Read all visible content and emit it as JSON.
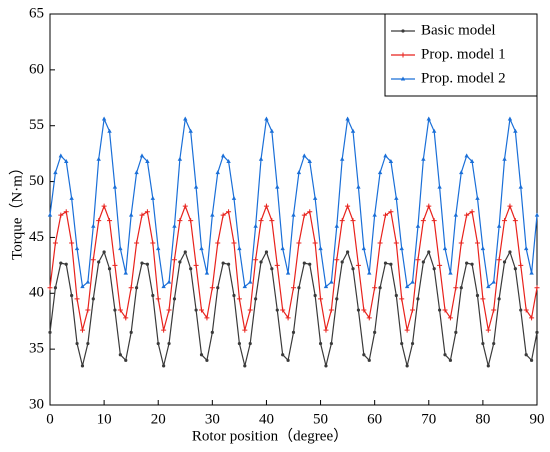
{
  "chart_data": {
    "type": "line",
    "x_label": "Rotor position（degree）",
    "y_label": "Torque（N·m）",
    "x": [
      0,
      1,
      2,
      3,
      4,
      5,
      6,
      7,
      8,
      9,
      10,
      11,
      12,
      13,
      14,
      15,
      16,
      17,
      18,
      19,
      20,
      21,
      22,
      23,
      24,
      25,
      26,
      27,
      28,
      29,
      30,
      31,
      32,
      33,
      34,
      35,
      36,
      37,
      38,
      39,
      40,
      41,
      42,
      43,
      44,
      45,
      46,
      47,
      48,
      49,
      50,
      51,
      52,
      53,
      54,
      55,
      56,
      57,
      58,
      59,
      60,
      61,
      62,
      63,
      64,
      65,
      66,
      67,
      68,
      69,
      70,
      71,
      72,
      73,
      74,
      75,
      76,
      77,
      78,
      79,
      80,
      81,
      82,
      83,
      84,
      85,
      86,
      87,
      88,
      89,
      90
    ],
    "series": [
      {
        "name": "Basic model",
        "color": "#3a3a3a",
        "marker": "circle",
        "values": [
          36.5,
          40.5,
          42.7,
          42.6,
          39.8,
          35.5,
          33.5,
          35.5,
          39.5,
          42.8,
          43.7,
          42.2,
          38.5,
          34.5,
          34.0,
          36.5,
          40.5,
          42.7,
          42.6,
          39.8,
          35.5,
          33.5,
          35.5,
          39.5,
          42.8,
          43.7,
          42.2,
          38.5,
          34.5,
          34.0,
          36.5,
          40.5,
          42.7,
          42.6,
          39.8,
          35.5,
          33.5,
          35.5,
          39.5,
          42.8,
          43.7,
          42.2,
          38.5,
          34.5,
          34.0,
          36.5,
          40.5,
          42.7,
          42.6,
          39.8,
          35.5,
          33.5,
          35.5,
          39.5,
          42.8,
          43.7,
          42.2,
          38.5,
          34.5,
          34.0,
          36.5,
          40.5,
          42.7,
          42.6,
          39.8,
          35.5,
          33.5,
          35.5,
          39.5,
          42.8,
          43.7,
          42.2,
          38.5,
          34.5,
          34.0,
          36.5,
          40.5,
          42.7,
          42.6,
          39.8,
          35.5,
          33.5,
          35.5,
          39.5,
          42.8,
          43.7,
          42.2,
          38.5,
          34.5,
          34.0,
          36.5
        ]
      },
      {
        "name": "Prop. model 1",
        "color": "#e8221c",
        "marker": "plus",
        "values": [
          40.5,
          44.5,
          47.0,
          47.3,
          44.5,
          39.5,
          36.7,
          38.5,
          43.0,
          46.5,
          47.8,
          46.5,
          42.5,
          38.5,
          37.8,
          40.5,
          44.5,
          47.0,
          47.3,
          44.5,
          39.5,
          36.7,
          38.5,
          43.0,
          46.5,
          47.8,
          46.5,
          42.5,
          38.5,
          37.8,
          40.5,
          44.5,
          47.0,
          47.3,
          44.5,
          39.5,
          36.7,
          38.5,
          43.0,
          46.5,
          47.8,
          46.5,
          42.5,
          38.5,
          37.8,
          40.5,
          44.5,
          47.0,
          47.3,
          44.5,
          39.5,
          36.7,
          38.5,
          43.0,
          46.5,
          47.8,
          46.5,
          42.5,
          38.5,
          37.8,
          40.5,
          44.5,
          47.0,
          47.3,
          44.5,
          39.5,
          36.7,
          38.5,
          43.0,
          46.5,
          47.8,
          46.5,
          42.5,
          38.5,
          37.8,
          40.5,
          44.5,
          47.0,
          47.3,
          44.5,
          39.5,
          36.7,
          38.5,
          43.0,
          46.5,
          47.8,
          46.5,
          42.5,
          38.5,
          37.8,
          40.5
        ]
      },
      {
        "name": "Prop. model 2",
        "color": "#1a6fd8",
        "marker": "triangle",
        "values": [
          47.0,
          50.8,
          52.3,
          51.8,
          48.5,
          44.0,
          40.6,
          41.0,
          46.0,
          52.0,
          55.6,
          54.5,
          49.5,
          44.0,
          41.8,
          47.0,
          50.8,
          52.3,
          51.8,
          48.5,
          44.0,
          40.6,
          41.0,
          46.0,
          52.0,
          55.6,
          54.5,
          49.5,
          44.0,
          41.8,
          47.0,
          50.8,
          52.3,
          51.8,
          48.5,
          44.0,
          40.6,
          41.0,
          46.0,
          52.0,
          55.6,
          54.5,
          49.5,
          44.0,
          41.8,
          47.0,
          50.8,
          52.3,
          51.8,
          48.5,
          44.0,
          40.6,
          41.0,
          46.0,
          52.0,
          55.6,
          54.5,
          49.5,
          44.0,
          41.8,
          47.0,
          50.8,
          52.3,
          51.8,
          48.5,
          44.0,
          40.6,
          41.0,
          46.0,
          52.0,
          55.6,
          54.5,
          49.5,
          44.0,
          41.8,
          47.0,
          50.8,
          52.3,
          51.8,
          48.5,
          44.0,
          40.6,
          41.0,
          46.0,
          52.0,
          55.6,
          54.5,
          49.5,
          44.0,
          41.8,
          47.0
        ]
      }
    ],
    "xlim": [
      0,
      90
    ],
    "xticks": [
      0,
      10,
      20,
      30,
      40,
      50,
      60,
      70,
      80,
      90
    ],
    "ylim": [
      30,
      65
    ],
    "yticks": [
      30,
      35,
      40,
      45,
      50,
      55,
      60,
      65
    ],
    "grid": false,
    "legend": "upper right"
  }
}
